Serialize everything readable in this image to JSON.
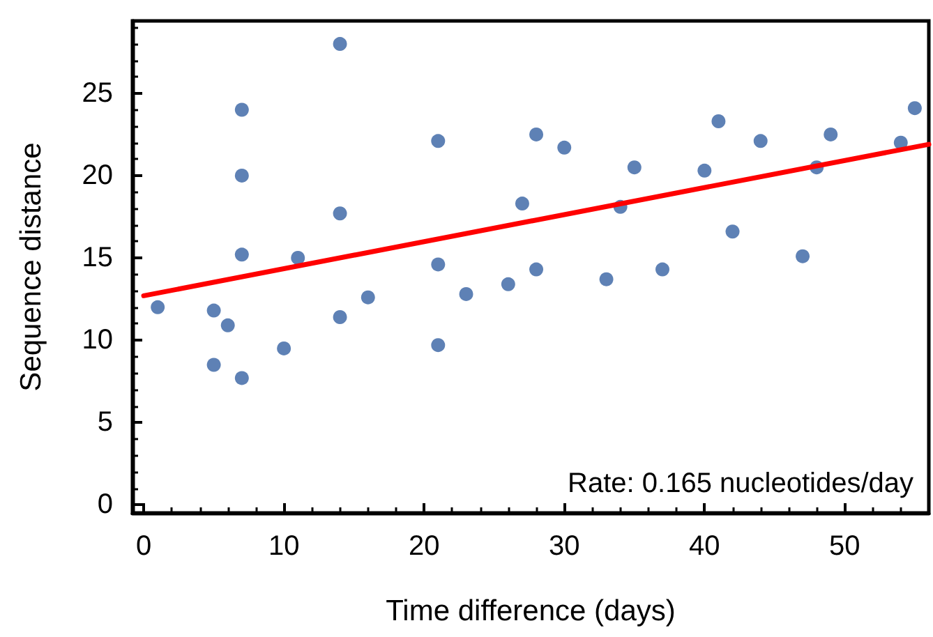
{
  "chart_data": {
    "type": "scatter",
    "xlabel": "Time difference (days)",
    "ylabel": "Sequence distance",
    "annotations": [
      "Rate: 0.165 nucleotides/day"
    ],
    "series": [
      {
        "color": "#5e81b5",
        "x": [
          1,
          5,
          5,
          6,
          7,
          7,
          7,
          7,
          10,
          11,
          14,
          14,
          14,
          16,
          21,
          21,
          21,
          23,
          26,
          27,
          28,
          28,
          30,
          33,
          34,
          35,
          37,
          40,
          41,
          42,
          44,
          47,
          48,
          49,
          54,
          55
        ],
        "values": [
          12.0,
          11.8,
          8.5,
          10.9,
          24.0,
          20.0,
          15.2,
          7.7,
          9.5,
          15.0,
          28.0,
          17.7,
          11.4,
          12.6,
          22.1,
          14.6,
          9.7,
          12.8,
          13.4,
          18.3,
          22.5,
          14.3,
          21.7,
          13.7,
          18.1,
          20.5,
          14.3,
          20.3,
          23.3,
          16.6,
          22.1,
          15.1,
          20.5,
          22.5,
          22.0,
          24.1
        ]
      },
      {
        "type": "line",
        "marker": "none",
        "color": "#ff0000",
        "x": [
          0,
          56
        ],
        "values": [
          12.7,
          21.9
        ]
      }
    ],
    "xlim": [
      -0.8,
      56
    ],
    "ylim": [
      -0.5,
      29.4
    ],
    "xticks": [
      0,
      10,
      20,
      30,
      40,
      50
    ],
    "yticks": [
      0,
      5,
      10,
      15,
      20,
      25
    ],
    "marker": "circle",
    "line_style": "solid"
  }
}
